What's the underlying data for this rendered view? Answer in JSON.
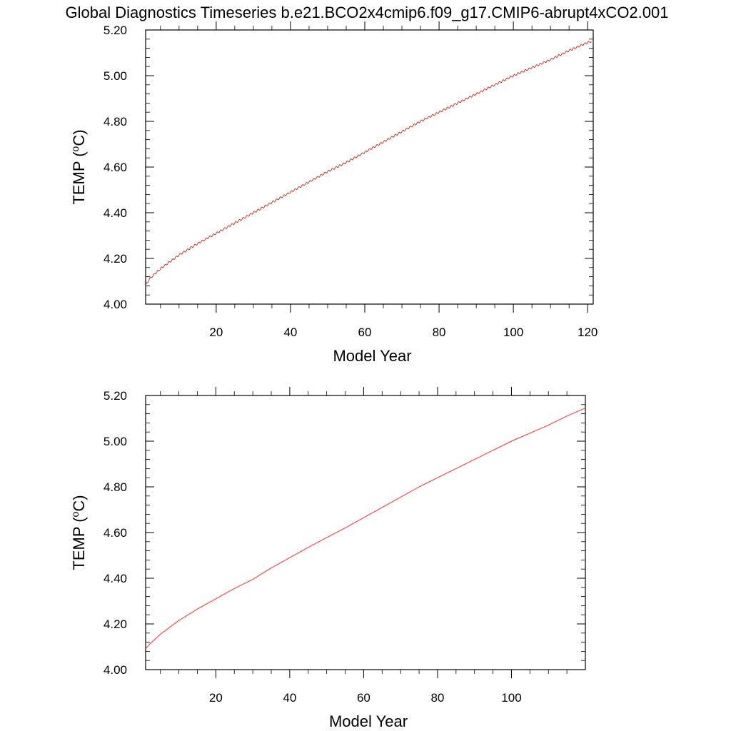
{
  "figure": {
    "title": "Global Diagnostics Timeseries b.e21.BCO2x4cmip6.f09_g17.CMIP6-abrupt4xCO2.001"
  },
  "chart_data": [
    {
      "type": "line",
      "xlabel": "Model Year",
      "ylabel_main": "TEMP (",
      "ylabel_sup": "o",
      "ylabel_tail": "C)",
      "xlim": [
        1,
        121.5
      ],
      "ylim": [
        4.0,
        5.2
      ],
      "x_ticks": [
        20,
        40,
        60,
        80,
        100,
        120
      ],
      "x_tick_labels": [
        "20",
        "40",
        "60",
        "80",
        "100",
        "120"
      ],
      "y_ticks": [
        4.0,
        4.2,
        4.4,
        4.6,
        4.8,
        5.0,
        5.2
      ],
      "y_tick_labels": [
        "4.00",
        "4.20",
        "4.40",
        "4.60",
        "4.80",
        "5.00",
        "5.20"
      ],
      "series": [
        {
          "kind": "monthly",
          "color": "#c0392b",
          "x": [
            1,
            2,
            3,
            4,
            5,
            10,
            15,
            20,
            25,
            30,
            35,
            40,
            45,
            50,
            55,
            60,
            65,
            70,
            75,
            80,
            85,
            90,
            95,
            100,
            105,
            110,
            115,
            120,
            121
          ],
          "values": [
            4.08,
            4.11,
            4.125,
            4.14,
            4.155,
            4.215,
            4.265,
            4.31,
            4.355,
            4.4,
            4.445,
            4.49,
            4.535,
            4.58,
            4.62,
            4.665,
            4.71,
            4.755,
            4.8,
            4.84,
            4.88,
            4.92,
            4.96,
            5.0,
            5.035,
            5.07,
            5.11,
            5.145,
            5.15
          ],
          "seasonal_amplitude": 0.004
        }
      ]
    },
    {
      "type": "line",
      "xlabel": "Model Year",
      "ylabel_main": "TEMP (",
      "ylabel_sup": "o",
      "ylabel_tail": "C)",
      "xlim": [
        1,
        120
      ],
      "ylim": [
        4.0,
        5.2
      ],
      "x_ticks": [
        20,
        40,
        60,
        80,
        100
      ],
      "x_tick_labels": [
        "20",
        "40",
        "60",
        "80",
        "100"
      ],
      "y_ticks": [
        4.0,
        4.2,
        4.4,
        4.6,
        4.8,
        5.0,
        5.2
      ],
      "y_tick_labels": [
        "4.00",
        "4.20",
        "4.40",
        "4.60",
        "4.80",
        "5.00",
        "5.20"
      ],
      "series": [
        {
          "kind": "annual",
          "color": "#ff2a2a",
          "x": [
            1,
            2,
            3,
            4,
            5,
            10,
            15,
            20,
            25,
            30,
            35,
            40,
            45,
            50,
            55,
            60,
            65,
            70,
            75,
            80,
            85,
            90,
            95,
            100,
            105,
            110,
            115,
            120
          ],
          "values": [
            4.09,
            4.11,
            4.125,
            4.14,
            4.155,
            4.215,
            4.265,
            4.31,
            4.355,
            4.395,
            4.445,
            4.49,
            4.535,
            4.578,
            4.62,
            4.665,
            4.71,
            4.755,
            4.8,
            4.84,
            4.88,
            4.92,
            4.96,
            5.0,
            5.035,
            5.07,
            5.11,
            5.145
          ]
        }
      ]
    }
  ]
}
